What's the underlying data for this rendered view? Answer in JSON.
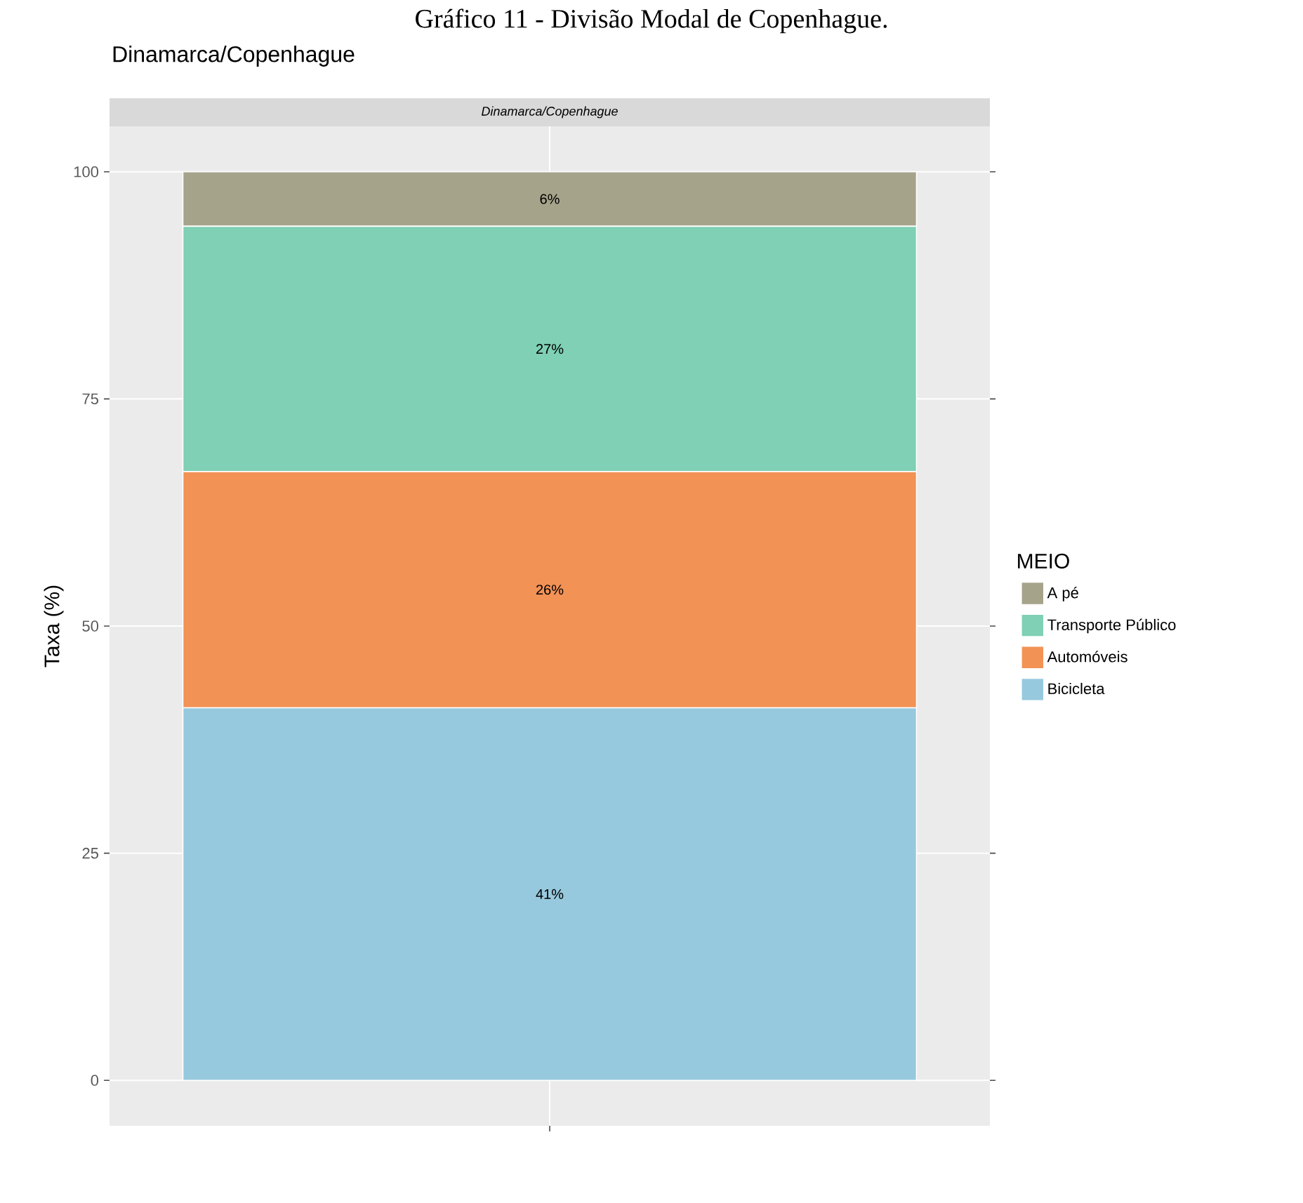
{
  "chart_data": {
    "type": "bar",
    "title": "Gráfico 11 - Divisão Modal de Copenhague.",
    "subtitle": "Dinamarca/Copenhague",
    "annotations": [
      "Dinamarca/Copenhague"
    ],
    "ylabel": "Taxa (%)",
    "legend_title": "MEIO",
    "categories": [
      null
    ],
    "stacked": true,
    "series": [
      {
        "name": "Bicicleta",
        "color": "#97c9de",
        "values": [
          41
        ],
        "value_labels": [
          "41%"
        ]
      },
      {
        "name": "Automóveis",
        "color": "#f29255",
        "values": [
          26
        ],
        "value_labels": [
          "26%"
        ]
      },
      {
        "name": "Transporte Público",
        "color": "#7fd0b4",
        "values": [
          27
        ],
        "value_labels": [
          "27%"
        ]
      },
      {
        "name": "A pé",
        "color": "#a5a38a",
        "values": [
          6
        ],
        "value_labels": [
          "6%"
        ]
      }
    ],
    "ylim": [
      -5,
      105
    ],
    "yticks": [
      0,
      25,
      50,
      75,
      100
    ],
    "grid": true,
    "legend": "right"
  }
}
